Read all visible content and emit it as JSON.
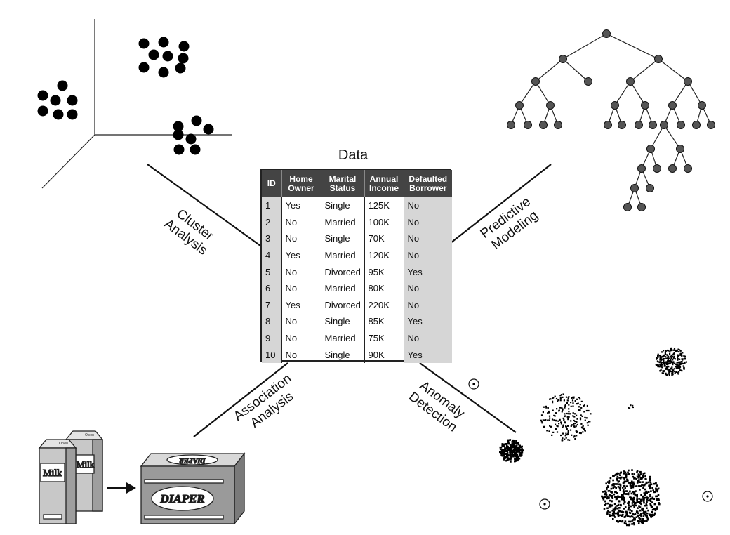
{
  "data_title": "Data",
  "table": {
    "headers": [
      {
        "line1": "ID",
        "line2": ""
      },
      {
        "line1": "Home",
        "line2": "Owner"
      },
      {
        "line1": "Marital",
        "line2": "Status"
      },
      {
        "line1": "Annual",
        "line2": "Income"
      },
      {
        "line1": "Defaulted",
        "line2": "Borrower"
      }
    ],
    "rows": [
      [
        "1",
        "Yes",
        "Single",
        "125K",
        "No"
      ],
      [
        "2",
        "No",
        "Married",
        "100K",
        "No"
      ],
      [
        "3",
        "No",
        "Single",
        "70K",
        "No"
      ],
      [
        "4",
        "Yes",
        "Married",
        "120K",
        "No"
      ],
      [
        "5",
        "No",
        "Divorced",
        "95K",
        "Yes"
      ],
      [
        "6",
        "No",
        "Married",
        "80K",
        "No"
      ],
      [
        "7",
        "Yes",
        "Divorced",
        "220K",
        "No"
      ],
      [
        "8",
        "No",
        "Single",
        "85K",
        "Yes"
      ],
      [
        "9",
        "No",
        "Married",
        "75K",
        "No"
      ],
      [
        "10",
        "No",
        "Single",
        "90K",
        "Yes"
      ]
    ]
  },
  "tasks": {
    "cluster": [
      "Cluster",
      "Analysis"
    ],
    "predictive": [
      "Predictive",
      "Modeling"
    ],
    "association": [
      "Association",
      "Analysis"
    ],
    "anomaly": [
      "Anomaly",
      "Detection"
    ]
  },
  "products": {
    "milk_label": "Milk",
    "milk_back_label": "Milk",
    "carton_tag": "Open",
    "diaper_label": "DIAPER",
    "diaper_top_label": "DIAPER"
  },
  "colors": {
    "node_fill": "#555555",
    "table_header": "#444444",
    "table_shade": "#d6d6d6",
    "carton_gray": "#c8c8c8",
    "box_gray": "#9a9a9a"
  }
}
